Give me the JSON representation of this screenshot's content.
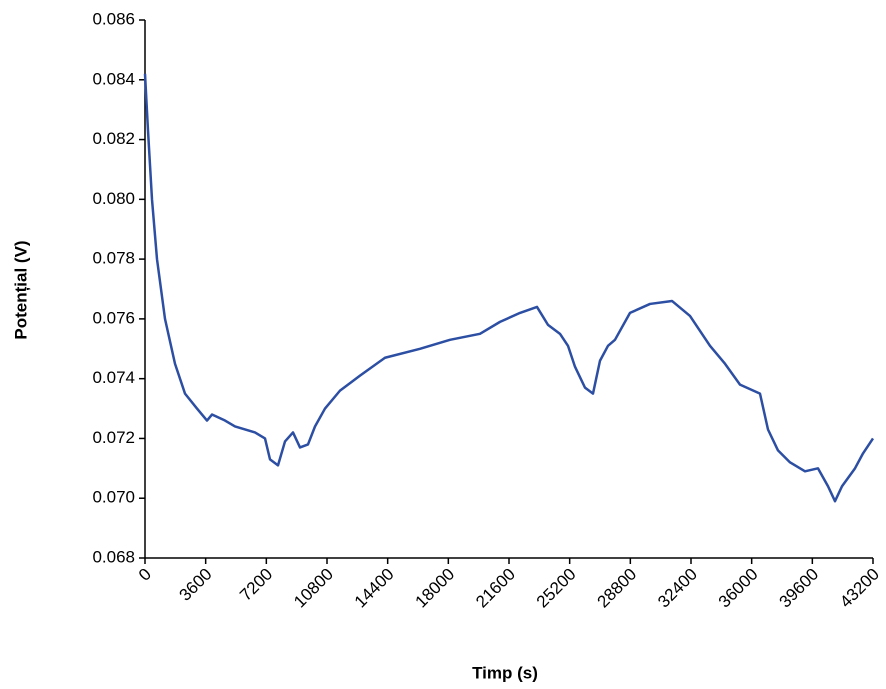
{
  "chart_data": {
    "type": "line",
    "xlabel": "Timp (s)",
    "ylabel": "Potențial (V)",
    "x": [
      0,
      178,
      415,
      712,
      1187,
      1780,
      2374,
      3086,
      3679,
      3976,
      4747,
      5341,
      6527,
      7121,
      7418,
      7892,
      8308,
      8782,
      9198,
      9672,
      10087,
      10681,
      11571,
      12758,
      14241,
      16318,
      18098,
      19878,
      21065,
      22252,
      23261,
      23914,
      24626,
      25100,
      25516,
      26109,
      26584,
      26999,
      27474,
      27889,
      28780,
      29967,
      31272,
      32340,
      33527,
      34417,
      35307,
      36494,
      36969,
      37562,
      38274,
      39165,
      39936,
      40530,
      40945,
      41361,
      42132,
      42607,
      43200
    ],
    "series": [
      {
        "name": "Potențial",
        "color": "#2c4ea3",
        "values": [
          0.0842,
          0.0823,
          0.08,
          0.078,
          0.076,
          0.0745,
          0.0735,
          0.073,
          0.0726,
          0.0728,
          0.0726,
          0.0724,
          0.0722,
          0.072,
          0.0713,
          0.0711,
          0.0719,
          0.0722,
          0.0717,
          0.0718,
          0.0724,
          0.073,
          0.0736,
          0.0741,
          0.0747,
          0.075,
          0.0753,
          0.0755,
          0.0759,
          0.0762,
          0.0764,
          0.0758,
          0.0755,
          0.0751,
          0.0744,
          0.0737,
          0.0735,
          0.0746,
          0.0751,
          0.0753,
          0.0762,
          0.0765,
          0.0766,
          0.0761,
          0.0751,
          0.0745,
          0.0738,
          0.0735,
          0.0723,
          0.0716,
          0.0712,
          0.0709,
          0.071,
          0.0704,
          0.0699,
          0.0704,
          0.071,
          0.0715,
          0.072
        ]
      }
    ],
    "xlim": [
      0,
      43200
    ],
    "xticks": [
      0,
      3600,
      7200,
      10800,
      14400,
      18000,
      21600,
      25200,
      28800,
      32400,
      36000,
      39600,
      43200
    ],
    "ylim": [
      0.068,
      0.086
    ],
    "yticks": [
      0.068,
      {
        "value": 0.07,
        "label": "0.070"
      },
      0.072,
      0.074,
      0.076,
      0.078,
      {
        "value": 0.08,
        "label": "0.080"
      },
      0.082,
      0.084,
      0.086
    ]
  }
}
